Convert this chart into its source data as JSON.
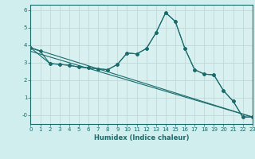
{
  "xlabel": "Humidex (Indice chaleur)",
  "bg_color": "#d0eeee",
  "plot_bg_color": "#d8f0f0",
  "line_color": "#1a6b6b",
  "grid_color": "#c0d8d8",
  "xlim": [
    0,
    23
  ],
  "ylim": [
    -0.5,
    6.3
  ],
  "ytick_vals": [
    0,
    1,
    2,
    3,
    4,
    5,
    6
  ],
  "ytick_labels": [
    "-0",
    "1",
    "2",
    "3",
    "4",
    "5",
    "6"
  ],
  "xticks": [
    0,
    1,
    2,
    3,
    4,
    5,
    6,
    7,
    8,
    9,
    10,
    11,
    12,
    13,
    14,
    15,
    16,
    17,
    18,
    19,
    20,
    21,
    22,
    23
  ],
  "line1_x": [
    0,
    1,
    2,
    3,
    4,
    5,
    6,
    7,
    8,
    9,
    10,
    11,
    12,
    13,
    14,
    15,
    16,
    17,
    18,
    19,
    20,
    21,
    22,
    23
  ],
  "line1_y": [
    3.85,
    3.65,
    2.95,
    2.9,
    2.85,
    2.75,
    2.7,
    2.65,
    2.6,
    2.9,
    3.55,
    3.5,
    3.8,
    4.7,
    5.85,
    5.35,
    3.8,
    2.6,
    2.35,
    2.3,
    1.4,
    0.8,
    -0.1,
    -0.1
  ],
  "line2_x": [
    0,
    23
  ],
  "line2_y": [
    3.85,
    -0.1
  ],
  "line3_x": [
    0,
    23
  ],
  "line3_y": [
    3.65,
    -0.1
  ],
  "line4_x": [
    0,
    2,
    3,
    4,
    5,
    6,
    7,
    8,
    9,
    10,
    11,
    12,
    13,
    14,
    15,
    16,
    17,
    18,
    19,
    20,
    21,
    22,
    23
  ],
  "line4_y": [
    3.85,
    2.95,
    2.9,
    2.85,
    2.75,
    2.7,
    2.65,
    2.6,
    2.9,
    3.55,
    3.5,
    3.8,
    4.7,
    5.85,
    5.35,
    3.8,
    2.6,
    2.35,
    2.3,
    1.4,
    0.8,
    -0.1,
    -0.1
  ]
}
